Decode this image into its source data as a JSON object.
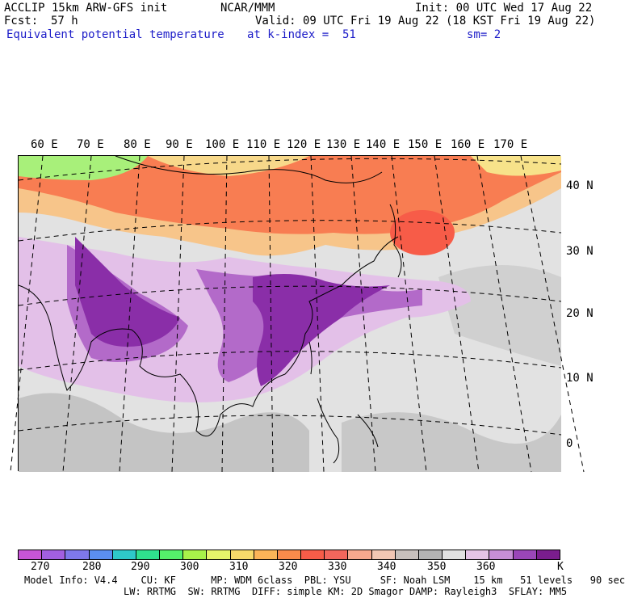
{
  "header": {
    "model": "ACCLIP 15km ARW-GFS init",
    "org": "NCAR/MMM",
    "init": "Init: 00 UTC Wed 17 Aug 22",
    "fcst_label": "Fcst:",
    "fcst_value": "57 h",
    "valid": "Valid: 09 UTC Fri 19 Aug 22 (18 KST Fri 19 Aug 22)",
    "field": "Equivalent potential temperature",
    "level": "at k-index =  51",
    "smooth": "sm= 2"
  },
  "map": {
    "lon_labels": [
      "60 E",
      "70 E",
      "80 E",
      "90 E",
      "100 E",
      "110 E",
      "120 E",
      "130 E",
      "140 E",
      "150 E",
      "160 E",
      "170 E"
    ],
    "lat_labels": [
      "40 N",
      "30 N",
      "20 N",
      "10 N",
      "0"
    ],
    "graticule_color": "#000000"
  },
  "colorbar": {
    "colors": [
      "#c755d6",
      "#a25fe0",
      "#7e78ea",
      "#5b8ff0",
      "#2ec9c9",
      "#2fe08e",
      "#55f06a",
      "#a8f24a",
      "#e6f46a",
      "#f7da6a",
      "#fbb458",
      "#f98b4b",
      "#f75c48",
      "#f2665c",
      "#f7a88e",
      "#f2c7b4",
      "#c8c0bc",
      "#b4b4b4",
      "#e1e1e1",
      "#e4c4e6",
      "#c78fd6",
      "#9a46b8",
      "#7a1d8e"
    ],
    "ticks": [
      "270",
      "280",
      "290",
      "300",
      "310",
      "320",
      "330",
      "340",
      "350",
      "360",
      "K"
    ],
    "unit": "K"
  },
  "model_info": {
    "line1": "Model Info: V4.4    CU: KF      MP: WDM 6class  PBL: YSU     SF: Noah LSM    15 km   51 levels   90 sec",
    "line2": "LW: RRTMG  SW: RRTMG  DIFF: simple KM: 2D Smagor DAMP: Rayleigh3  SFLAY: MM5"
  }
}
